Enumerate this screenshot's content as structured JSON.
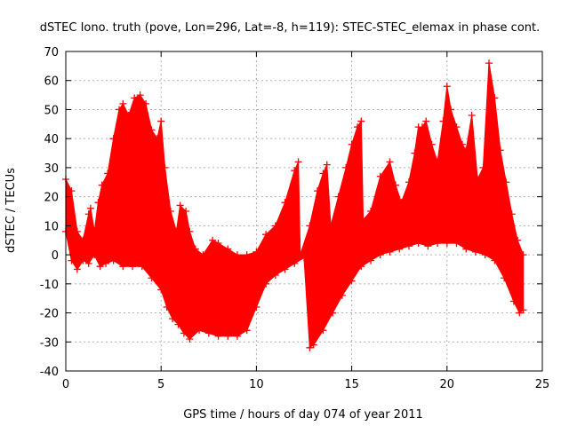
{
  "chart_data": {
    "type": "line",
    "title": "dSTEC Iono. truth (pove, Lon=296, Lat=-8, h=119): STEC-STEC_elemax in phase cont.",
    "xlabel": "GPS time / hours of day 074 of year 2011",
    "ylabel": "dSTEC  / TECUs",
    "xlim": [
      0,
      25
    ],
    "ylim": [
      -40,
      70
    ],
    "xticks": [
      0,
      5,
      10,
      15,
      20,
      25
    ],
    "yticks": [
      -40,
      -30,
      -20,
      -10,
      0,
      10,
      20,
      30,
      40,
      50,
      60,
      70
    ],
    "grid": true,
    "legend": "none",
    "series_color": "#ff0000",
    "series": [
      {
        "marker": "plus",
        "envelope_upper": [
          [
            0,
            26
          ],
          [
            0.3,
            22
          ],
          [
            0.6,
            8
          ],
          [
            0.9,
            5
          ],
          [
            1.2,
            14
          ],
          [
            1.3,
            16
          ],
          [
            1.5,
            8
          ],
          [
            1.7,
            18
          ],
          [
            1.9,
            24
          ],
          [
            2.2,
            28
          ],
          [
            2.5,
            40
          ],
          [
            2.8,
            50
          ],
          [
            3.0,
            52
          ],
          [
            3.3,
            48
          ],
          [
            3.6,
            54
          ],
          [
            3.9,
            55
          ],
          [
            4.2,
            52
          ],
          [
            4.5,
            43
          ],
          [
            4.8,
            40
          ],
          [
            5.0,
            46
          ],
          [
            5.2,
            30
          ],
          [
            5.5,
            15
          ],
          [
            5.8,
            8
          ],
          [
            6.0,
            17
          ],
          [
            6.3,
            15
          ],
          [
            6.5,
            8
          ],
          [
            6.8,
            2
          ],
          [
            7.2,
            0
          ],
          [
            7.7,
            5
          ],
          [
            8.0,
            4
          ],
          [
            8.5,
            2
          ],
          [
            9.0,
            0
          ],
          [
            9.5,
            0
          ],
          [
            10.0,
            1
          ],
          [
            10.5,
            7
          ],
          [
            11.0,
            10
          ],
          [
            11.5,
            18
          ],
          [
            12.0,
            29
          ],
          [
            12.2,
            32
          ],
          [
            12.3,
            0
          ],
          [
            12.8,
            10
          ],
          [
            13.2,
            22
          ],
          [
            13.5,
            28
          ],
          [
            13.7,
            31
          ],
          [
            13.9,
            10
          ],
          [
            14.3,
            20
          ],
          [
            14.7,
            30
          ],
          [
            15.0,
            38
          ],
          [
            15.3,
            44
          ],
          [
            15.5,
            46
          ],
          [
            15.6,
            12
          ],
          [
            16.0,
            15
          ],
          [
            16.5,
            27
          ],
          [
            17.0,
            32
          ],
          [
            17.3,
            24
          ],
          [
            17.6,
            18
          ],
          [
            18.0,
            25
          ],
          [
            18.3,
            35
          ],
          [
            18.5,
            44
          ],
          [
            18.7,
            44
          ],
          [
            18.9,
            46
          ],
          [
            19.2,
            38
          ],
          [
            19.5,
            32
          ],
          [
            19.8,
            46
          ],
          [
            20.0,
            58
          ],
          [
            20.2,
            50
          ],
          [
            20.5,
            44
          ],
          [
            20.8,
            38
          ],
          [
            21.0,
            36
          ],
          [
            21.3,
            48
          ],
          [
            21.6,
            26
          ],
          [
            21.9,
            30
          ],
          [
            22.2,
            66
          ],
          [
            22.5,
            54
          ],
          [
            22.8,
            36
          ],
          [
            23.1,
            25
          ],
          [
            23.4,
            14
          ],
          [
            23.7,
            5
          ],
          [
            24.0,
            0
          ]
        ],
        "envelope_lower": [
          [
            0,
            8
          ],
          [
            0.3,
            -2
          ],
          [
            0.6,
            -5
          ],
          [
            0.9,
            -2
          ],
          [
            1.2,
            -3
          ],
          [
            1.5,
            0
          ],
          [
            1.8,
            -4
          ],
          [
            2.1,
            -3
          ],
          [
            2.5,
            -2
          ],
          [
            3.0,
            -4
          ],
          [
            3.5,
            -4
          ],
          [
            4.0,
            -4
          ],
          [
            4.5,
            -8
          ],
          [
            5.0,
            -12
          ],
          [
            5.3,
            -18
          ],
          [
            5.6,
            -22
          ],
          [
            5.9,
            -24
          ],
          [
            6.2,
            -27
          ],
          [
            6.5,
            -29
          ],
          [
            7.0,
            -26
          ],
          [
            7.5,
            -27
          ],
          [
            8.0,
            -28
          ],
          [
            8.5,
            -28
          ],
          [
            9.0,
            -28
          ],
          [
            9.5,
            -26
          ],
          [
            10.0,
            -18
          ],
          [
            10.5,
            -10
          ],
          [
            11.0,
            -7
          ],
          [
            11.5,
            -5
          ],
          [
            12.0,
            -3
          ],
          [
            12.5,
            -1
          ],
          [
            12.8,
            -32
          ],
          [
            13.0,
            -31
          ],
          [
            13.5,
            -26
          ],
          [
            14.0,
            -20
          ],
          [
            14.5,
            -14
          ],
          [
            15.0,
            -9
          ],
          [
            15.5,
            -4
          ],
          [
            16.0,
            -2
          ],
          [
            16.5,
            0
          ],
          [
            17.0,
            1
          ],
          [
            17.5,
            2
          ],
          [
            18.0,
            3
          ],
          [
            18.5,
            4
          ],
          [
            19.0,
            3
          ],
          [
            19.5,
            4
          ],
          [
            20.0,
            4
          ],
          [
            20.5,
            4
          ],
          [
            21.0,
            2
          ],
          [
            21.5,
            1
          ],
          [
            22.0,
            0
          ],
          [
            22.5,
            -2
          ],
          [
            23.0,
            -8
          ],
          [
            23.5,
            -16
          ],
          [
            23.8,
            -20
          ],
          [
            24.0,
            -19
          ]
        ]
      }
    ]
  }
}
